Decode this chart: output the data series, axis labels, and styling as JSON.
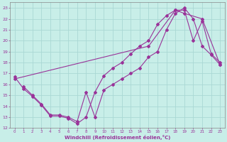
{
  "title": "",
  "xlabel": "Windchill (Refroidissement éolien,°C)",
  "background_color": "#c8eee8",
  "grid_color": "#aad8d4",
  "line_color": "#993399",
  "xlim": [
    -0.5,
    23.5
  ],
  "ylim": [
    12,
    23.5
  ],
  "yticks": [
    12,
    13,
    14,
    15,
    16,
    17,
    18,
    19,
    20,
    21,
    22,
    23
  ],
  "xticks": [
    0,
    1,
    2,
    3,
    4,
    5,
    6,
    7,
    8,
    9,
    10,
    11,
    12,
    13,
    14,
    15,
    16,
    17,
    18,
    19,
    20,
    21,
    22,
    23
  ],
  "line1_x": [
    0,
    1,
    2,
    3,
    4,
    5,
    6,
    7,
    8,
    9,
    10,
    11,
    12,
    13,
    14,
    15,
    16,
    17,
    18,
    19,
    20,
    21,
    22,
    23
  ],
  "line1_y": [
    16.7,
    15.6,
    14.9,
    14.1,
    13.1,
    13.1,
    12.9,
    12.4,
    13.0,
    15.3,
    16.8,
    17.5,
    18.0,
    18.8,
    19.5,
    20.0,
    21.5,
    22.3,
    22.8,
    22.8,
    20.0,
    21.8,
    18.8,
    18.0
  ],
  "line2_x": [
    0,
    15,
    18,
    19,
    21,
    23
  ],
  "line2_y": [
    16.5,
    19.5,
    22.8,
    22.5,
    22.0,
    17.8
  ],
  "line3_x": [
    1,
    2,
    3,
    4,
    5,
    6,
    7,
    8,
    9,
    10,
    11,
    12,
    13,
    14,
    15,
    16,
    17,
    18,
    19,
    20,
    21,
    22,
    23
  ],
  "line3_y": [
    15.8,
    15.0,
    14.2,
    13.2,
    13.2,
    13.0,
    12.6,
    15.3,
    13.0,
    15.5,
    16.0,
    16.5,
    17.0,
    17.5,
    18.5,
    19.0,
    21.0,
    22.5,
    23.0,
    22.0,
    19.5,
    18.7,
    17.8
  ]
}
